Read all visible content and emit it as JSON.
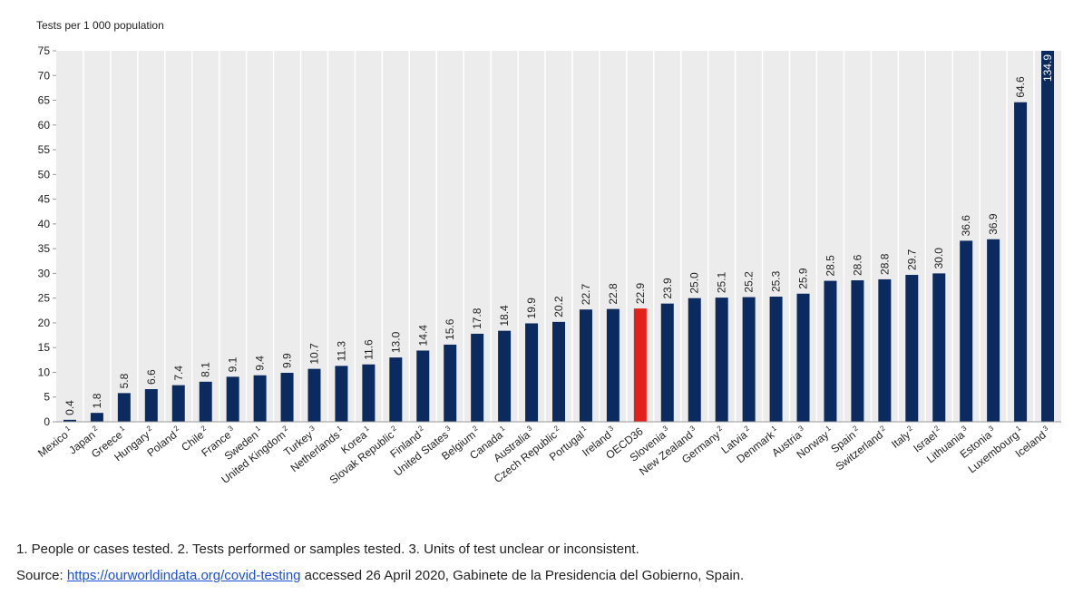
{
  "chart_data": {
    "type": "bar",
    "y_axis_label": "Tests per 1 000 population",
    "categories": [
      "Mexico",
      "Japan",
      "Greece",
      "Hungary",
      "Poland",
      "Chile",
      "France",
      "Sweden",
      "United Kingdom",
      "Turkey",
      "Netherlands",
      "Korea",
      "Slovak Republic",
      "Finland",
      "United States",
      "Belgium",
      "Canada",
      "Australia",
      "Czech Republic",
      "Portugal",
      "Ireland",
      "OECD36",
      "Slovenia",
      "New Zealand",
      "Germany",
      "Latvia",
      "Denmark",
      "Austria",
      "Norway",
      "Spain",
      "Switzerland",
      "Italy",
      "Israel",
      "Lithuania",
      "Estonia",
      "Luxembourg",
      "Iceland"
    ],
    "category_notes": [
      1,
      2,
      1,
      2,
      2,
      2,
      3,
      1,
      2,
      3,
      1,
      1,
      2,
      2,
      3,
      2,
      1,
      3,
      2,
      1,
      3,
      null,
      3,
      3,
      2,
      2,
      1,
      3,
      1,
      2,
      2,
      2,
      2,
      3,
      3,
      1,
      3
    ],
    "values": [
      0.4,
      1.8,
      5.8,
      6.6,
      7.4,
      8.1,
      9.1,
      9.4,
      9.9,
      10.7,
      11.3,
      11.6,
      13.0,
      14.4,
      15.6,
      17.8,
      18.4,
      19.9,
      20.2,
      22.7,
      22.8,
      22.9,
      23.9,
      25.0,
      25.1,
      25.2,
      25.3,
      25.9,
      28.5,
      28.6,
      28.8,
      29.7,
      30.0,
      36.6,
      36.9,
      64.6,
      134.9
    ],
    "value_labels": [
      "0.4",
      "1.8",
      "5.8",
      "6.6",
      "7.4",
      "8.1",
      "9.1",
      "9.4",
      "9.9",
      "10.7",
      "11.3",
      "11.6",
      "13.0",
      "14.4",
      "15.6",
      "17.8",
      "18.4",
      "19.9",
      "20.2",
      "22.7",
      "22.8",
      "22.9",
      "23.9",
      "25.0",
      "25.1",
      "25.2",
      "25.3",
      "25.9",
      "28.5",
      "28.6",
      "28.8",
      "29.7",
      "30.0",
      "36.6",
      "36.9",
      "64.6",
      "134.9"
    ],
    "colors": [
      "#0b2a5f",
      "#0b2a5f",
      "#0b2a5f",
      "#0b2a5f",
      "#0b2a5f",
      "#0b2a5f",
      "#0b2a5f",
      "#0b2a5f",
      "#0b2a5f",
      "#0b2a5f",
      "#0b2a5f",
      "#0b2a5f",
      "#0b2a5f",
      "#0b2a5f",
      "#0b2a5f",
      "#0b2a5f",
      "#0b2a5f",
      "#0b2a5f",
      "#0b2a5f",
      "#0b2a5f",
      "#0b2a5f",
      "#e3201b",
      "#0b2a5f",
      "#0b2a5f",
      "#0b2a5f",
      "#0b2a5f",
      "#0b2a5f",
      "#0b2a5f",
      "#0b2a5f",
      "#0b2a5f",
      "#0b2a5f",
      "#0b2a5f",
      "#0b2a5f",
      "#0b2a5f",
      "#0b2a5f",
      "#0b2a5f",
      "#0b2a5f"
    ],
    "ylim": [
      0,
      75
    ],
    "yticks": [
      0,
      5,
      10,
      15,
      20,
      25,
      30,
      35,
      40,
      45,
      50,
      55,
      60,
      65,
      70,
      75
    ],
    "notes": "1. People or cases tested. 2. Tests performed or samples tested. 3. Units of test unclear or inconsistent.",
    "source": {
      "prefix": "Source: ",
      "link": "https://ourworldindata.org/covid-testing",
      "suffix": " accessed 26 April 2020, Gabinete de la Presidencia del Gobierno, Spain."
    }
  }
}
